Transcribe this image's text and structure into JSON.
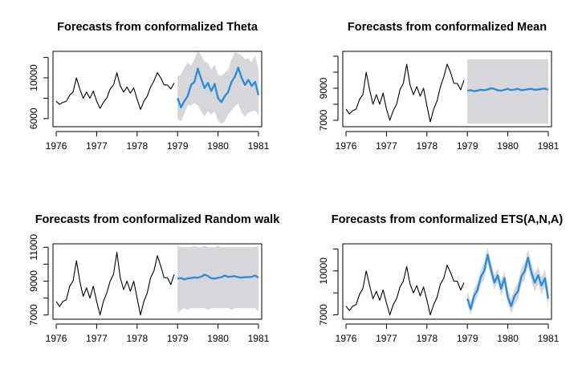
{
  "colors": {
    "history": "#000000",
    "forecast": "#2b8fd8",
    "band": "#d7d7db"
  },
  "chart_data": [
    {
      "type": "line",
      "title": "Forecasts from conformalized Theta",
      "xlabel": "",
      "ylabel": "",
      "xlim": [
        1975.92,
        1981.08
      ],
      "ylim": [
        5200,
        12600
      ],
      "xticks": [
        1976,
        1977,
        1978,
        1979,
        1980,
        1981
      ],
      "xtick_labels": [
        "1976",
        "1977",
        "1978",
        "1979",
        "1980",
        "1981"
      ],
      "yticks": [
        6000,
        8000,
        10000,
        12000
      ],
      "ytick_labels": [
        "6000",
        "",
        "10000",
        ""
      ],
      "history": {
        "start": 1976,
        "step": 0.083333,
        "values": [
          7700,
          7400,
          7600,
          7700,
          8300,
          8600,
          10000,
          8900,
          8000,
          8600,
          8000,
          8700,
          7700,
          7000,
          7600,
          8000,
          8900,
          9300,
          10500,
          9200,
          8600,
          9100,
          8500,
          9000,
          7900,
          6900,
          7700,
          8200,
          9100,
          9700,
          10500,
          10000,
          9300,
          9300,
          8900,
          9500
        ]
      },
      "forecast": {
        "start": 1979,
        "step": 0.083333,
        "values": [
          8000,
          7100,
          7700,
          8200,
          9300,
          9600,
          10900,
          9900,
          9000,
          9500,
          8700,
          9400,
          8000,
          7600,
          8200,
          8600,
          9600,
          10100,
          11000,
          10000,
          9300,
          9800,
          9200,
          9600,
          8300
        ],
        "lower": [
          6000,
          5700,
          6500,
          7300,
          7300,
          7500,
          7300,
          6700,
          6200,
          6700,
          6400,
          6700,
          5800,
          5500,
          5700,
          6400,
          6800,
          7200,
          7500,
          6600,
          6200,
          6600,
          6700,
          6800,
          6300
        ],
        "upper": [
          10200,
          10300,
          11000,
          11500,
          11200,
          11800,
          12700,
          12200,
          11600,
          11500,
          10800,
          11300,
          10300,
          10200,
          10500,
          10800,
          11800,
          12500,
          12400,
          12200,
          11800,
          11900,
          11500,
          12200,
          10800
        ]
      }
    },
    {
      "type": "line",
      "title": "Forecasts from conformalized Mean",
      "xlabel": "",
      "ylabel": "",
      "xlim": [
        1975.92,
        1981.08
      ],
      "ylim": [
        6600,
        11300
      ],
      "xticks": [
        1976,
        1977,
        1978,
        1979,
        1980,
        1981
      ],
      "xtick_labels": [
        "1976",
        "1977",
        "1978",
        "1979",
        "1980",
        "1981"
      ],
      "yticks": [
        7000,
        8000,
        9000,
        10000,
        11000
      ],
      "ytick_labels": [
        "7000",
        "",
        "9000",
        "",
        ""
      ],
      "history": {
        "start": 1976,
        "step": 0.083333,
        "values": [
          7700,
          7400,
          7600,
          7700,
          8300,
          8600,
          10000,
          8900,
          8000,
          8600,
          8000,
          8700,
          7700,
          7000,
          7600,
          8000,
          8900,
          9300,
          10500,
          9200,
          8600,
          9100,
          8500,
          9000,
          7900,
          6900,
          7700,
          8200,
          9100,
          9700,
          10500,
          10000,
          9300,
          9300,
          8900,
          9500
        ]
      },
      "forecast": {
        "start": 1979,
        "step": 0.083333,
        "values": [
          8850,
          8880,
          8820,
          8850,
          8900,
          8880,
          8920,
          9000,
          8960,
          8870,
          8850,
          8900,
          8960,
          8880,
          8920,
          8960,
          8880,
          8900,
          8940,
          8960,
          8900,
          8920,
          8960,
          8980,
          8900
        ],
        "lower": [
          6800,
          6800,
          6800,
          6800,
          6800,
          6800,
          6800,
          6800,
          6800,
          6800,
          6800,
          6800,
          6800,
          6800,
          6800,
          6800,
          6800,
          6800,
          6800,
          6800,
          6800,
          6800,
          6800,
          6800,
          6800
        ],
        "upper": [
          10800,
          10800,
          10800,
          10800,
          10800,
          10800,
          10800,
          10800,
          10800,
          10800,
          10800,
          10800,
          10800,
          10800,
          10800,
          10800,
          10800,
          10800,
          10800,
          10800,
          10800,
          10800,
          10800,
          10800,
          10800
        ]
      }
    },
    {
      "type": "line",
      "title": "Forecasts from conformalized Random walk",
      "xlabel": "",
      "ylabel": "",
      "xlim": [
        1975.92,
        1981.08
      ],
      "ylim": [
        6750,
        11200
      ],
      "xticks": [
        1976,
        1977,
        1978,
        1979,
        1980,
        1981
      ],
      "xtick_labels": [
        "1976",
        "1977",
        "1978",
        "1979",
        "1980",
        "1981"
      ],
      "yticks": [
        7000,
        8000,
        9000,
        10000,
        11000
      ],
      "ytick_labels": [
        "7000",
        "",
        "9000",
        "",
        "11000"
      ],
      "history": {
        "start": 1976,
        "step": 0.083333,
        "values": [
          7800,
          7500,
          7800,
          7900,
          8700,
          9000,
          10200,
          9000,
          8100,
          8600,
          8000,
          8700,
          7800,
          7000,
          7800,
          8300,
          9000,
          9400,
          10700,
          9200,
          8500,
          9000,
          8400,
          9000,
          8000,
          7000,
          7800,
          8300,
          9200,
          9600,
          10500,
          9900,
          9200,
          9200,
          8800,
          9400
        ]
      },
      "forecast": {
        "start": 1979,
        "step": 0.083333,
        "values": [
          9150,
          9180,
          9100,
          9160,
          9180,
          9220,
          9200,
          9260,
          9380,
          9300,
          9170,
          9150,
          9190,
          9230,
          9330,
          9250,
          9270,
          9290,
          9230,
          9210,
          9230,
          9240,
          9250,
          9330,
          9200
        ],
        "lower": [
          7100,
          7300,
          7400,
          7300,
          7400,
          7400,
          7400,
          7400,
          7400,
          7300,
          7400,
          7400,
          7400,
          7400,
          7400,
          7400,
          7300,
          7400,
          7400,
          7400,
          7400,
          7400,
          7400,
          7400,
          7200
        ],
        "upper": [
          11100,
          11000,
          11000,
          11000,
          11000,
          11100,
          11000,
          11000,
          11100,
          11000,
          11000,
          11000,
          11100,
          11000,
          11000,
          11000,
          11000,
          11000,
          11000,
          11000,
          11000,
          11000,
          11000,
          11000,
          11100
        ]
      }
    },
    {
      "type": "line",
      "title": "Forecasts from conformalized ETS(A,N,A)",
      "xlabel": "",
      "ylabel": "",
      "xlim": [
        1975.92,
        1981.08
      ],
      "ylim": [
        6700,
        11850
      ],
      "xticks": [
        1976,
        1977,
        1978,
        1979,
        1980,
        1981
      ],
      "xtick_labels": [
        "1976",
        "1977",
        "1978",
        "1979",
        "1980",
        "1981"
      ],
      "yticks": [
        7000,
        8500,
        10000,
        11500
      ],
      "ytick_labels": [
        "7000",
        "",
        "10000",
        ""
      ],
      "history": {
        "start": 1976,
        "step": 0.083333,
        "values": [
          7600,
          7300,
          7600,
          7700,
          8400,
          8800,
          10000,
          9000,
          8100,
          8600,
          8000,
          8700,
          7800,
          7000,
          7700,
          8100,
          8900,
          9300,
          10300,
          9100,
          8500,
          9000,
          8300,
          8900,
          8000,
          7000,
          7700,
          8200,
          9100,
          9500,
          10400,
          9900,
          9300,
          9300,
          8700,
          9200
        ]
      },
      "forecast": {
        "start": 1979,
        "step": 0.083333,
        "values": [
          8100,
          7400,
          8300,
          8700,
          9600,
          10000,
          11100,
          10100,
          9200,
          9700,
          8800,
          9500,
          8200,
          7600,
          8300,
          8600,
          9600,
          10000,
          10900,
          9900,
          9200,
          9700,
          9000,
          9500,
          8100
        ],
        "lower": [
          7700,
          7000,
          7800,
          8200,
          9100,
          9400,
          10600,
          9600,
          8700,
          9200,
          8300,
          9000,
          7700,
          7100,
          7700,
          8000,
          9000,
          9400,
          10300,
          9300,
          8600,
          9100,
          8400,
          8900,
          7500
        ],
        "upper": [
          8600,
          7900,
          8800,
          9200,
          10100,
          10600,
          11600,
          10600,
          9700,
          10200,
          9300,
          10000,
          8700,
          8100,
          8800,
          9200,
          10200,
          10600,
          11500,
          10500,
          9800,
          10300,
          9600,
          10100,
          8800
        ]
      }
    }
  ]
}
